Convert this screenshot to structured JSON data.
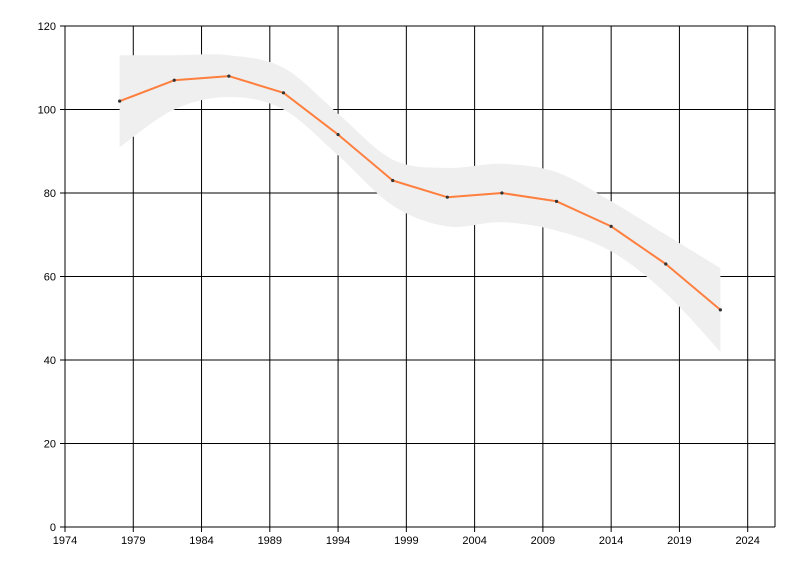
{
  "chart_data": {
    "type": "line",
    "title": "",
    "xlabel": "",
    "ylabel": "",
    "xlim": [
      1974,
      2026
    ],
    "ylim": [
      0,
      120
    ],
    "x_ticks": [
      "1974",
      "1979",
      "1984",
      "1989",
      "1994",
      "1999",
      "2004",
      "2009",
      "2014",
      "2019",
      "2024"
    ],
    "y_ticks": [
      "0",
      "20",
      "40",
      "60",
      "80",
      "100",
      "120"
    ],
    "grid": true,
    "legend": "none",
    "series": [
      {
        "x": [
          1978,
          1982,
          1986,
          1990,
          1994,
          1998,
          2002,
          2006,
          2010,
          2014,
          2018,
          2022
        ],
        "y": [
          102,
          107,
          108,
          104,
          94,
          83,
          79,
          80,
          78,
          72,
          63,
          52
        ],
        "lower": [
          91,
          100,
          103,
          100,
          89,
          77,
          72,
          73,
          71,
          66,
          56,
          42
        ],
        "upper": [
          113,
          113,
          113,
          110,
          99,
          88,
          86,
          87,
          85,
          78,
          70,
          62
        ],
        "color": "#ff7f3f",
        "band_color": "#efefef",
        "marker_color": "#333333"
      }
    ]
  }
}
